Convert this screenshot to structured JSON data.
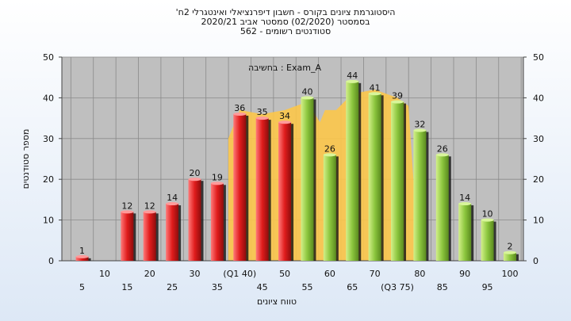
{
  "titles": {
    "line1": "'היסטוגרמת ציונים בקורס - חשבון דיפרנציאלי ואינטגרלי 2ח",
    "line2": "בסמסטר  (02/2020)  סמסטר אביב 2020/21",
    "line3": "סטודנטים רשומים - 562"
  },
  "chart_data": {
    "type": "bar",
    "xlabel": "טווח ציונים",
    "ylabel": "מספר סטודנטים",
    "ylim": [
      0,
      50
    ],
    "yticks": [
      0,
      10,
      20,
      30,
      40,
      50
    ],
    "annotation": "בחשיבה : Exam_A",
    "grid": true,
    "categories": [
      5,
      10,
      15,
      20,
      25,
      30,
      35,
      40,
      45,
      50,
      55,
      60,
      65,
      70,
      75,
      80,
      85,
      90,
      95,
      100
    ],
    "xtick_labels_upper": [
      "10",
      "20",
      "30",
      "(Q1 40)",
      "50",
      "60",
      "70",
      "80",
      "90",
      "100"
    ],
    "xtick_labels_lower": [
      "5",
      "15",
      "25",
      "35",
      "45",
      "55",
      "65",
      "(Q3 75)",
      "85",
      "95"
    ],
    "values": [
      1,
      0,
      12,
      12,
      14,
      20,
      19,
      36,
      35,
      34,
      40,
      26,
      44,
      41,
      39,
      32,
      26,
      14,
      10,
      2
    ],
    "colors": {
      "red": "#e02020",
      "green": "#8cc63e",
      "band": "#fcc64a"
    }
  }
}
